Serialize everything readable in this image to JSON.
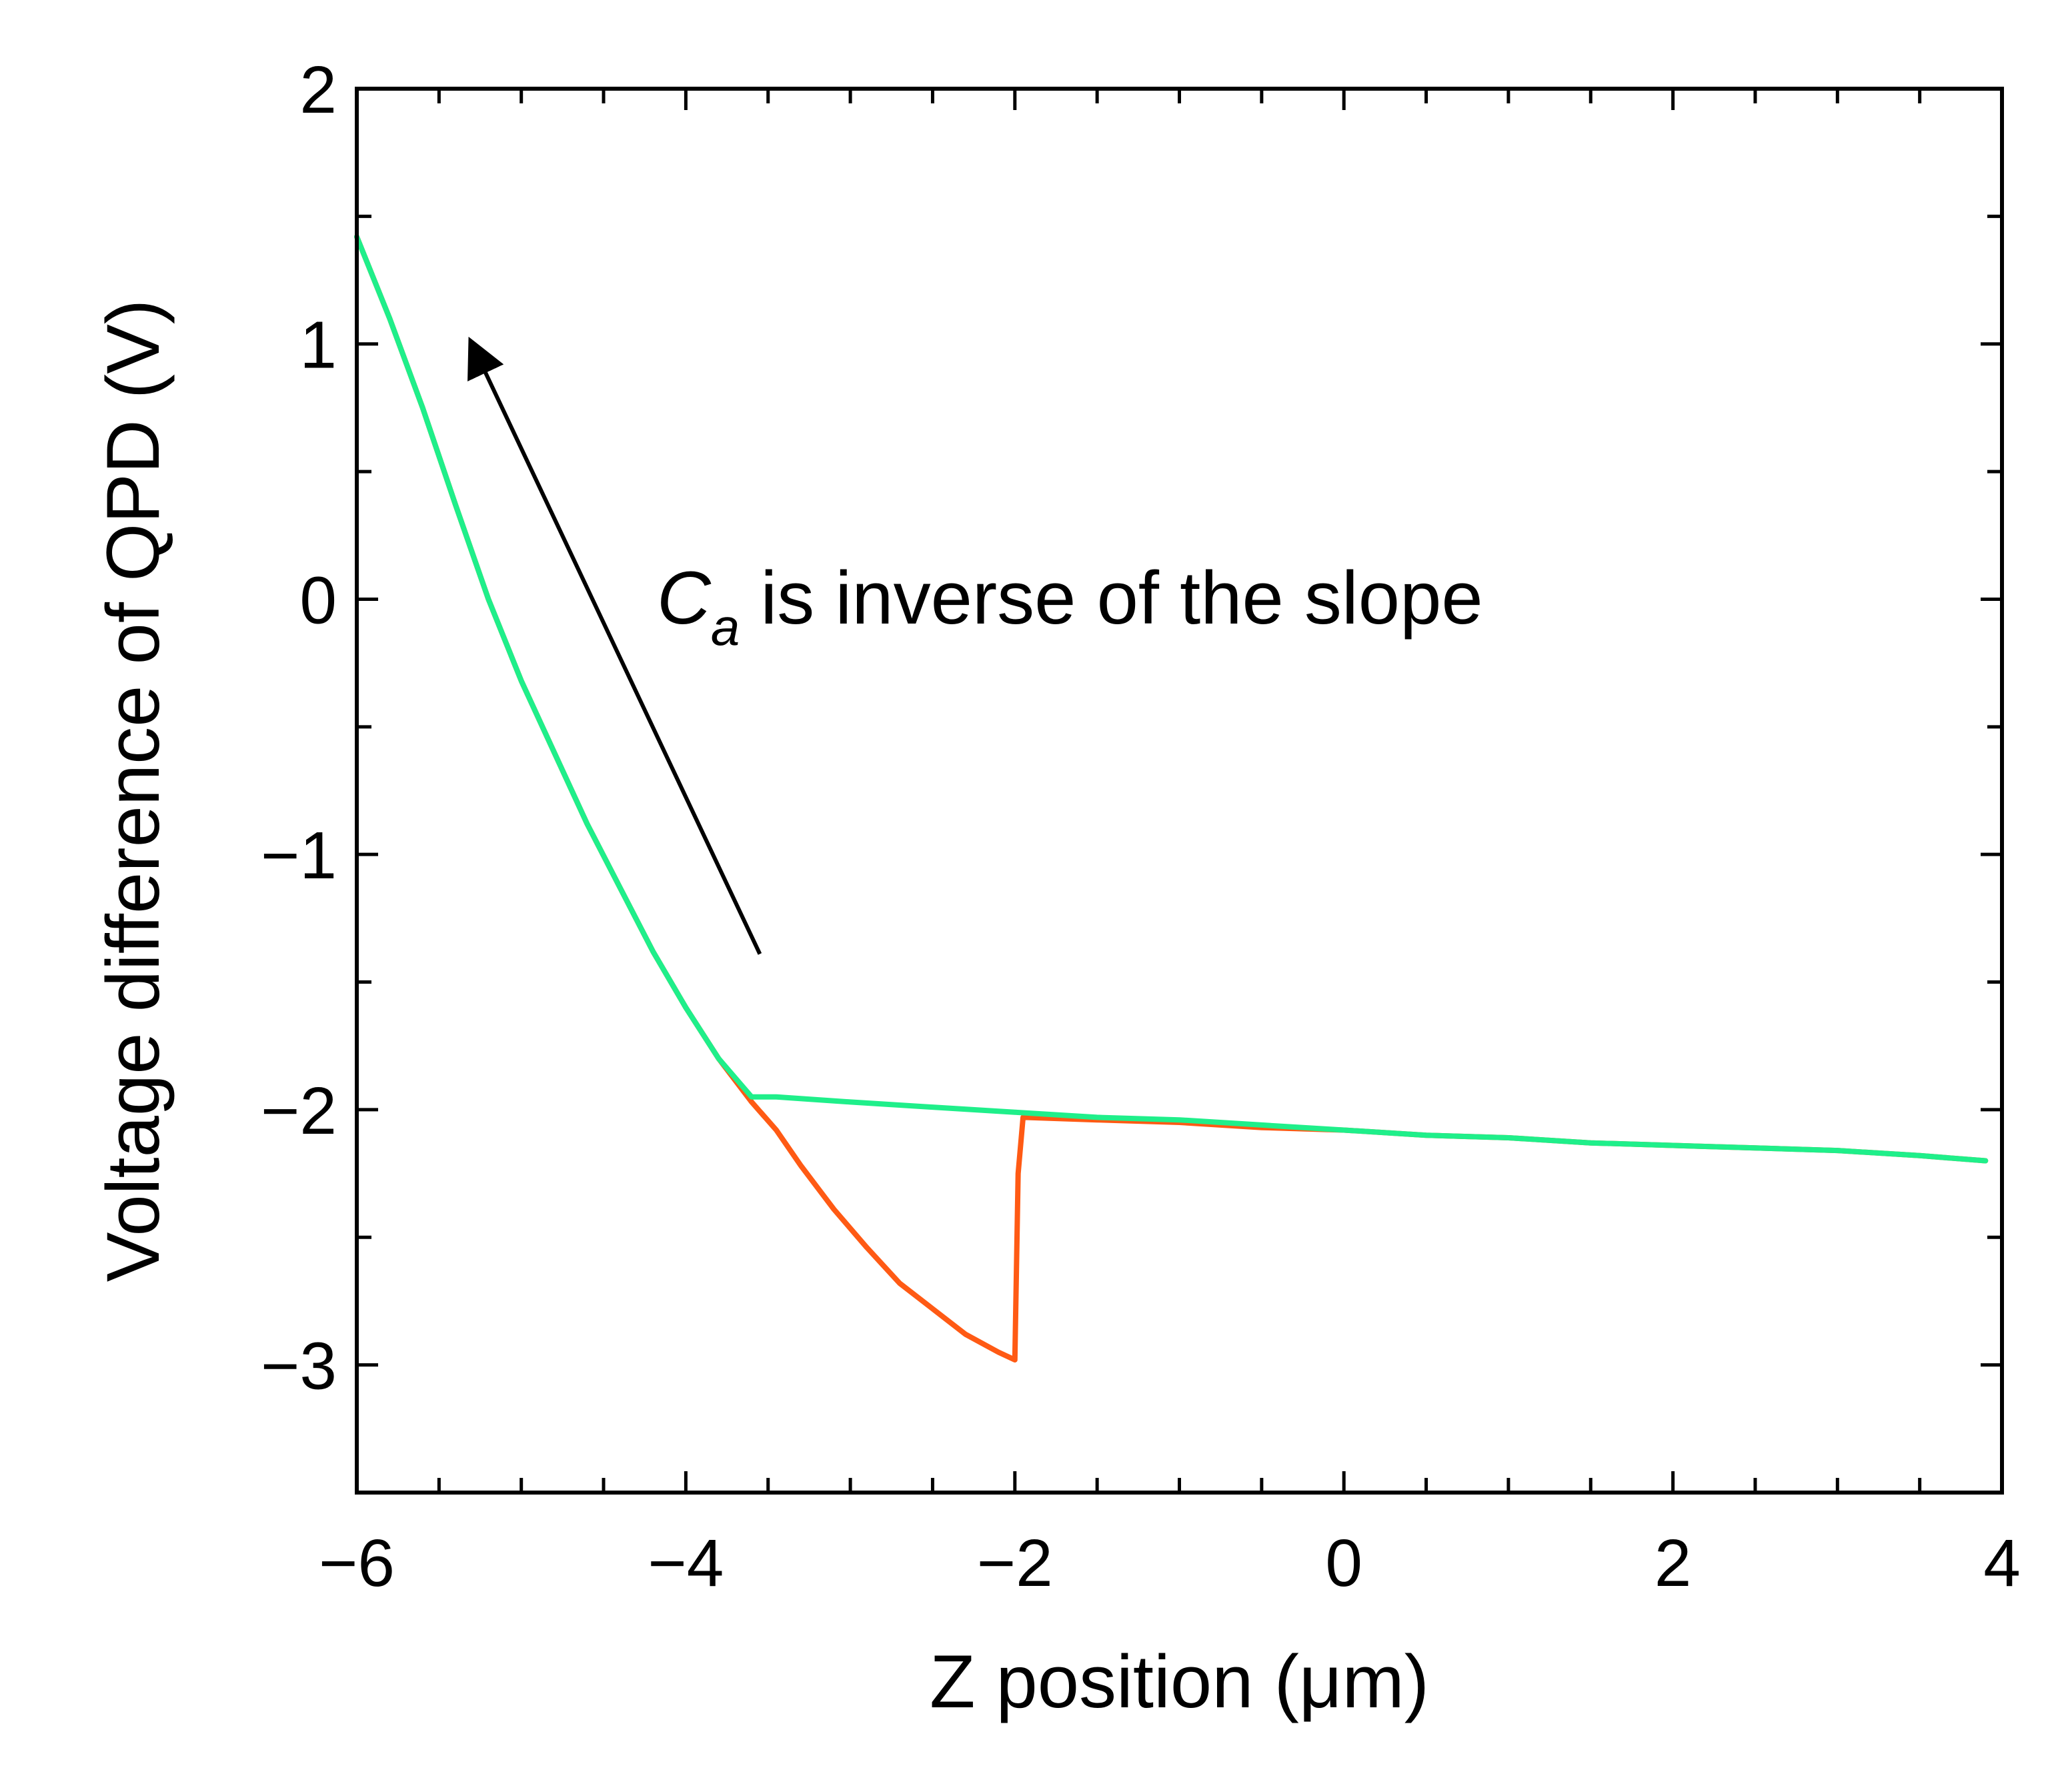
{
  "chart_data": {
    "type": "line",
    "xlabel": "Z position (μm)",
    "ylabel": "Voltage difference of QPD (V)",
    "xlim": [
      -6,
      4
    ],
    "ylim": [
      -3.5,
      2
    ],
    "xticks": [
      -6,
      -4,
      -2,
      0,
      2,
      4
    ],
    "yticks": [
      -3,
      -2,
      -1,
      0,
      1,
      2
    ],
    "xtick_labels": [
      "−6",
      "−4",
      "−2",
      "0",
      "2",
      "4"
    ],
    "ytick_labels": [
      "−3",
      "−2",
      "−1",
      "0",
      "1",
      "2"
    ],
    "grid": false,
    "annotation": {
      "symbol": "C",
      "subscript": "a",
      "text": " is inverse of the slope",
      "arrow_from": [
        -3.55,
        -1.39
      ],
      "arrow_to": [
        -5.3,
        1.0
      ]
    },
    "series": [
      {
        "color": "#ff5a14",
        "x": [
          -6.0,
          -5.8,
          -5.6,
          -5.4,
          -5.2,
          -5.0,
          -4.8,
          -4.6,
          -4.4,
          -4.2,
          -4.0,
          -3.8,
          -3.6,
          -3.45,
          -3.3,
          -3.1,
          -2.9,
          -2.7,
          -2.5,
          -2.3,
          -2.1,
          -2.0,
          -1.98,
          -1.95,
          -1.5,
          -1.0,
          -0.5,
          0.0,
          0.5,
          1.0,
          1.5,
          2.0,
          2.5,
          3.0,
          3.5,
          3.9
        ],
        "y": [
          1.42,
          1.1,
          0.75,
          0.37,
          0.0,
          -0.32,
          -0.6,
          -0.88,
          -1.13,
          -1.38,
          -1.6,
          -1.8,
          -1.97,
          -2.08,
          -2.22,
          -2.39,
          -2.54,
          -2.68,
          -2.78,
          -2.88,
          -2.95,
          -2.98,
          -2.25,
          -2.03,
          -2.04,
          -2.05,
          -2.07,
          -2.08,
          -2.1,
          -2.11,
          -2.13,
          -2.14,
          -2.15,
          -2.16,
          -2.18,
          -2.2
        ]
      },
      {
        "color": "#1fef8a",
        "x": [
          -6.0,
          -5.8,
          -5.6,
          -5.4,
          -5.2,
          -5.0,
          -4.8,
          -4.6,
          -4.4,
          -4.2,
          -4.0,
          -3.8,
          -3.6,
          -3.45,
          -3.0,
          -2.5,
          -2.0,
          -1.5,
          -1.0,
          -0.5,
          0.0,
          0.5,
          1.0,
          1.5,
          2.0,
          2.5,
          3.0,
          3.5,
          3.9
        ],
        "y": [
          1.42,
          1.1,
          0.75,
          0.37,
          0.0,
          -0.32,
          -0.6,
          -0.88,
          -1.13,
          -1.38,
          -1.6,
          -1.8,
          -1.95,
          -1.95,
          -1.97,
          -1.99,
          -2.01,
          -2.03,
          -2.04,
          -2.06,
          -2.08,
          -2.1,
          -2.11,
          -2.13,
          -2.14,
          -2.15,
          -2.16,
          -2.18,
          -2.2
        ]
      }
    ]
  }
}
